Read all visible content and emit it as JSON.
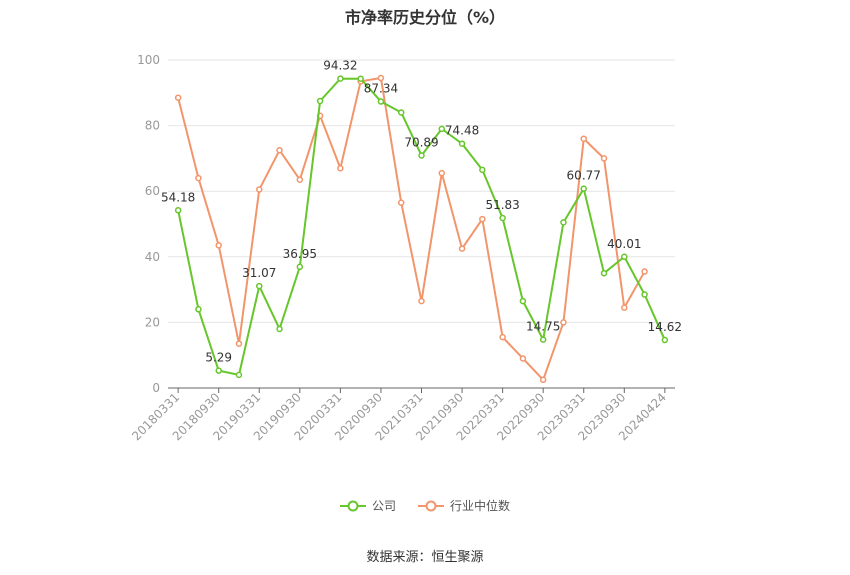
{
  "chart_data": {
    "type": "line",
    "title": "市净率历史分位（%）",
    "ylim": [
      0,
      100
    ],
    "yticks": [
      0,
      20,
      40,
      60,
      80,
      100
    ],
    "x_tick_labels": [
      "20180331",
      "20180930",
      "20190331",
      "20190930",
      "20200331",
      "20200930",
      "20210331",
      "20210930",
      "20220331",
      "20220930",
      "20230331",
      "20230930",
      "20240424"
    ],
    "grid": true,
    "legend_position": "bottom",
    "series": [
      {
        "name": "公司",
        "color": "#66c62b",
        "values": [
          54.18,
          24,
          5.29,
          4,
          31.07,
          18,
          36.95,
          87.5,
          94.32,
          94.3,
          87.34,
          84,
          70.89,
          79,
          74.48,
          66.5,
          51.83,
          26.5,
          14.75,
          50.5,
          60.77,
          35,
          40.01,
          28.5,
          14.62
        ],
        "labels": [
          "54.18",
          "",
          "5.29",
          "",
          "31.07",
          "",
          "36.95",
          "",
          "94.32",
          "",
          "87.34",
          "",
          "70.89",
          "",
          "74.48",
          "",
          "51.83",
          "",
          "14.75",
          "",
          "60.77",
          "",
          "40.01",
          "",
          "14.62"
        ]
      },
      {
        "name": "行业中位数",
        "color": "#f2956b",
        "values": [
          88.5,
          64,
          43.5,
          13.5,
          60.5,
          72.5,
          63.5,
          83,
          67,
          93.5,
          94.5,
          56.5,
          26.5,
          65.5,
          42.5,
          51.5,
          15.5,
          9,
          2.5,
          20,
          76,
          70,
          24.5,
          35.5
        ]
      }
    ]
  },
  "source_text": "数据来源：恒生聚源"
}
